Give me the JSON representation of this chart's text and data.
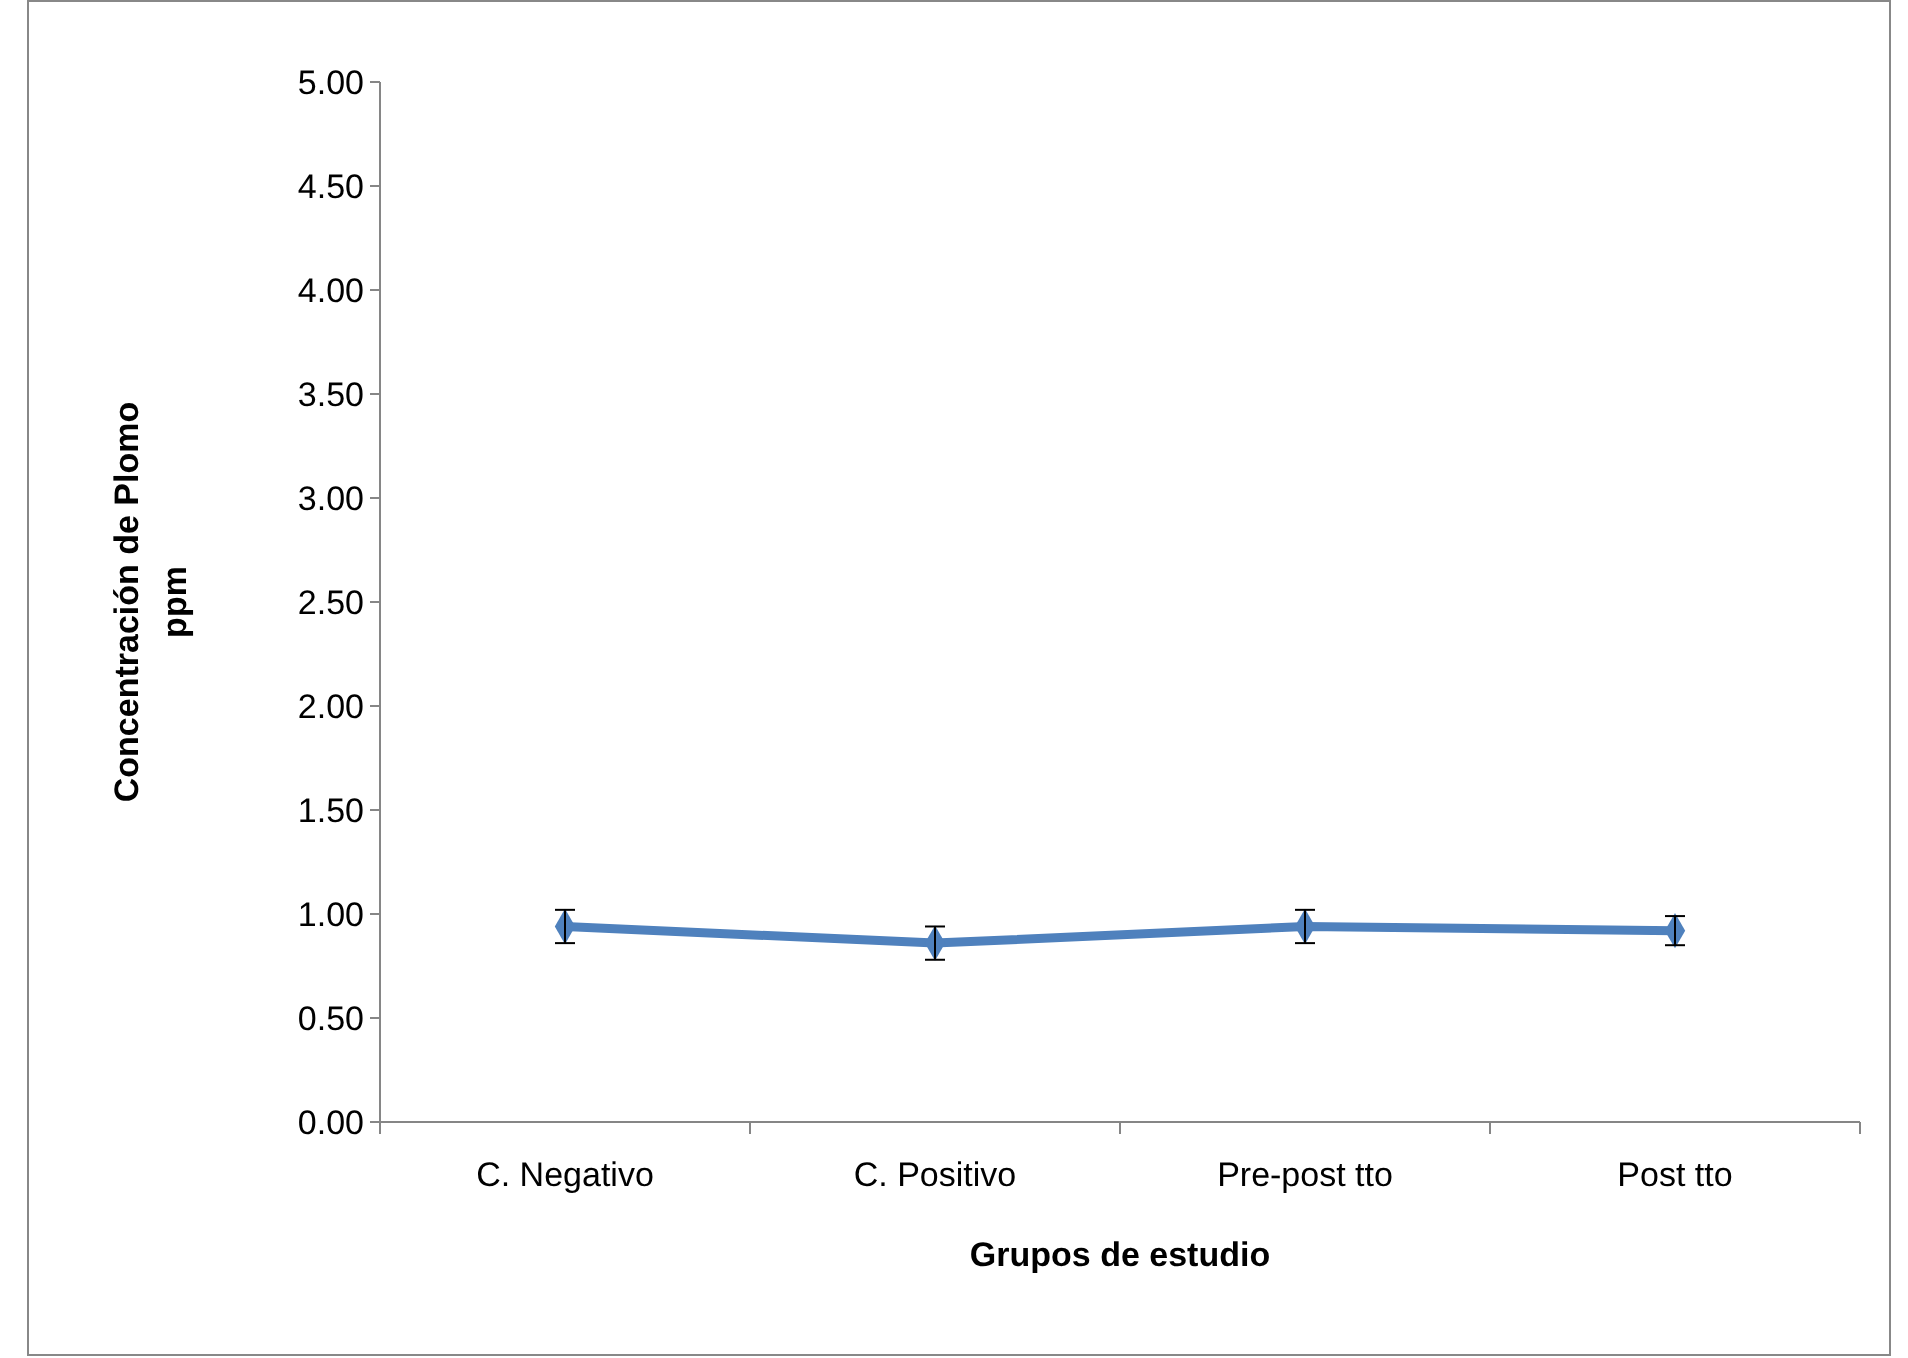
{
  "chart_data": {
    "type": "line",
    "xlabel": "Grupos de estudio",
    "ylabel": "Concentración de Plomo ppm",
    "categories": [
      "C. Negativo",
      "C. Positivo",
      "Pre-post tto",
      "Post tto"
    ],
    "series": [
      {
        "color": "#4f81bd",
        "values": [
          0.94,
          0.86,
          0.94,
          0.92
        ],
        "errors": [
          0.08,
          0.08,
          0.08,
          0.07
        ]
      }
    ],
    "ylim": [
      0,
      5
    ],
    "yticks": [
      {
        "value": 0,
        "label": "0.00"
      },
      {
        "value": 0.5,
        "label": "0.50"
      },
      {
        "value": 1,
        "label": "1.00"
      },
      {
        "value": 1.5,
        "label": "1.50"
      },
      {
        "value": 2,
        "label": "2.00"
      },
      {
        "value": 2.5,
        "label": "2.50"
      },
      {
        "value": 3,
        "label": "3.00"
      },
      {
        "value": 3.5,
        "label": "3.50"
      },
      {
        "value": 4,
        "label": "4.00"
      },
      {
        "value": 4.5,
        "label": "4.50"
      },
      {
        "value": 5,
        "label": "5.00"
      }
    ],
    "grid": false,
    "marker": "diamond",
    "line_style": "solid"
  }
}
